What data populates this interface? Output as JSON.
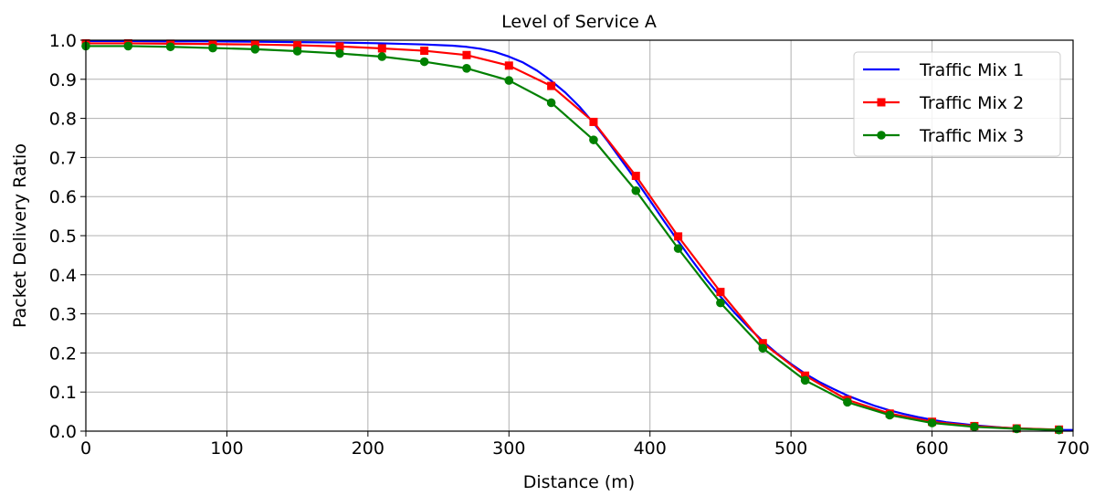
{
  "chart_data": {
    "type": "line",
    "title": "Level of Service A",
    "xlabel": "Distance (m)",
    "ylabel": "Packet Delivery Ratio",
    "xlim": [
      0,
      700
    ],
    "ylim": [
      0,
      1.0
    ],
    "xticks": [
      0,
      100,
      200,
      300,
      400,
      500,
      600,
      700
    ],
    "yticks": [
      0.0,
      0.1,
      0.2,
      0.3,
      0.4,
      0.5,
      0.6,
      0.7,
      0.8,
      0.9,
      1.0
    ],
    "xtick_labels": [
      "0",
      "100",
      "200",
      "300",
      "400",
      "500",
      "600",
      "700"
    ],
    "ytick_labels": [
      "0.0",
      "0.1",
      "0.2",
      "0.3",
      "0.4",
      "0.5",
      "0.6",
      "0.7",
      "0.8",
      "0.9",
      "1.0"
    ],
    "grid": true,
    "legend_position": "top-right",
    "series": [
      {
        "name": "Traffic Mix 1",
        "color": "#0000ff",
        "marker": "none",
        "x": [
          0,
          30,
          60,
          90,
          120,
          150,
          180,
          210,
          240,
          260,
          270,
          280,
          290,
          300,
          310,
          320,
          330,
          340,
          350,
          360,
          370,
          380,
          390,
          400,
          410,
          420,
          430,
          440,
          450,
          460,
          470,
          480,
          490,
          500,
          510,
          520,
          530,
          540,
          550,
          560,
          570,
          580,
          590,
          600,
          610,
          620,
          630,
          640,
          650,
          660,
          670,
          680,
          690,
          700
        ],
        "y": [
          0.998,
          0.998,
          0.997,
          0.997,
          0.996,
          0.995,
          0.994,
          0.992,
          0.989,
          0.986,
          0.983,
          0.978,
          0.97,
          0.958,
          0.943,
          0.922,
          0.896,
          0.866,
          0.83,
          0.788,
          0.742,
          0.692,
          0.642,
          0.59,
          0.537,
          0.486,
          0.436,
          0.388,
          0.344,
          0.303,
          0.265,
          0.23,
          0.199,
          0.172,
          0.147,
          0.126,
          0.108,
          0.091,
          0.077,
          0.064,
          0.053,
          0.044,
          0.036,
          0.029,
          0.023,
          0.019,
          0.015,
          0.012,
          0.009,
          0.007,
          0.006,
          0.004,
          0.003,
          0.003
        ]
      },
      {
        "name": "Traffic Mix 2",
        "color": "#ff0000",
        "marker": "square",
        "x": [
          0,
          30,
          60,
          90,
          120,
          150,
          180,
          210,
          240,
          270,
          300,
          330,
          360,
          390,
          420,
          450,
          480,
          510,
          540,
          570,
          600,
          630,
          660,
          690
        ],
        "y": [
          0.992,
          0.992,
          0.991,
          0.99,
          0.989,
          0.987,
          0.984,
          0.979,
          0.973,
          0.962,
          0.935,
          0.883,
          0.791,
          0.653,
          0.498,
          0.356,
          0.225,
          0.142,
          0.08,
          0.045,
          0.024,
          0.013,
          0.007,
          0.004
        ]
      },
      {
        "name": "Traffic Mix 3",
        "color": "#008000",
        "marker": "circle",
        "x": [
          0,
          30,
          60,
          90,
          120,
          150,
          180,
          210,
          240,
          270,
          300,
          330,
          360,
          390,
          420,
          450,
          480,
          510,
          540,
          570,
          600,
          630,
          660,
          690
        ],
        "y": [
          0.985,
          0.985,
          0.983,
          0.98,
          0.977,
          0.972,
          0.966,
          0.958,
          0.945,
          0.928,
          0.897,
          0.84,
          0.745,
          0.615,
          0.467,
          0.328,
          0.212,
          0.13,
          0.074,
          0.041,
          0.021,
          0.011,
          0.006,
          0.003
        ]
      }
    ]
  }
}
